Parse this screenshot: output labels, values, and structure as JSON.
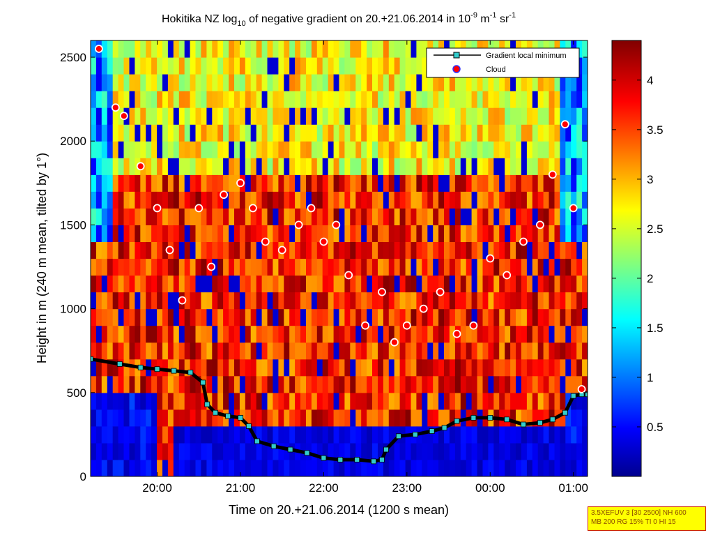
{
  "chart_data": {
    "type": "heatmap",
    "title": {
      "prefix": "Hokitika NZ log",
      "sub": "10",
      "middle": " of negative gradient on 20.+21.06.2014 in 10",
      "sup1": "-9",
      "unit_m": " m",
      "sup2": "-1",
      "unit_sr": " sr",
      "sup3": "-1"
    },
    "xlabel": "Time on 20.+21.06.2014 (1200 s mean)",
    "ylabel": "Height in m (240 m mean, tilted by 1°)",
    "x_ticks": [
      "20:00",
      "21:00",
      "22:00",
      "23:00",
      "00:00",
      "01:00"
    ],
    "y_ticks": [
      "0",
      "500",
      "1000",
      "1500",
      "2000",
      "2500"
    ],
    "ylim": [
      0,
      2600
    ],
    "xlim_hours": [
      19.2,
      25.17
    ],
    "colorbar": {
      "min": 0,
      "max": 4.4,
      "ticks": [
        "0.5",
        "1",
        "1.5",
        "2",
        "2.5",
        "3",
        "3.5",
        "4"
      ],
      "colormap": "jet"
    },
    "legend": {
      "position": "top-right",
      "entries": [
        {
          "label": "Gradient local minimum",
          "marker": "square",
          "color": "#33cccc"
        },
        {
          "label": "Cloud",
          "marker": "circle",
          "color": "#ff0000"
        }
      ]
    },
    "series": [
      {
        "name": "Gradient local minimum",
        "x_hours": [
          19.2,
          19.55,
          19.8,
          20.0,
          20.2,
          20.4,
          20.55,
          20.6,
          20.7,
          20.85,
          21.0,
          21.1,
          21.2,
          21.4,
          21.6,
          21.8,
          22.0,
          22.2,
          22.4,
          22.6,
          22.7,
          22.75,
          22.9,
          23.1,
          23.3,
          23.45,
          23.6,
          23.8,
          24.0,
          24.2,
          24.4,
          24.6,
          24.75,
          24.9,
          25.0,
          25.1,
          25.17
        ],
        "y": [
          700,
          670,
          650,
          640,
          630,
          620,
          560,
          430,
          380,
          360,
          350,
          300,
          210,
          180,
          160,
          140,
          110,
          100,
          100,
          90,
          100,
          160,
          240,
          250,
          270,
          290,
          330,
          350,
          350,
          340,
          310,
          320,
          340,
          380,
          480,
          490,
          490
        ]
      },
      {
        "name": "Cloud",
        "x_hours": [
          19.3,
          19.5,
          19.6,
          19.8,
          20.0,
          20.15,
          20.3,
          20.5,
          20.65,
          20.8,
          21.0,
          21.15,
          21.3,
          21.5,
          21.7,
          21.85,
          22.0,
          22.15,
          22.3,
          22.5,
          22.7,
          22.85,
          23.0,
          23.2,
          23.4,
          23.6,
          23.8,
          24.0,
          24.2,
          24.4,
          24.6,
          24.75,
          24.9,
          25.0,
          25.1
        ],
        "y": [
          2550,
          2200,
          2150,
          1850,
          1600,
          1350,
          1050,
          1600,
          1250,
          1680,
          1750,
          1600,
          1400,
          1350,
          1500,
          1600,
          1400,
          1500,
          1200,
          900,
          1100,
          800,
          900,
          1000,
          1100,
          850,
          900,
          1300,
          1200,
          1400,
          1500,
          1800,
          2100,
          1600,
          520
        ]
      }
    ]
  },
  "settings_box": {
    "line1": "3.5XEFUV 3 [30 2500] NH 600",
    "line2": "MB 200 RG 15% TI 0 HI 15"
  },
  "colors": {
    "legend_square": "#33cccc",
    "cloud_marker": "#ff0000",
    "cloud_edge": "#ffffff",
    "local_min_line": "#000000",
    "settings_bg": "#ffff00",
    "settings_border": "#cc2200"
  }
}
